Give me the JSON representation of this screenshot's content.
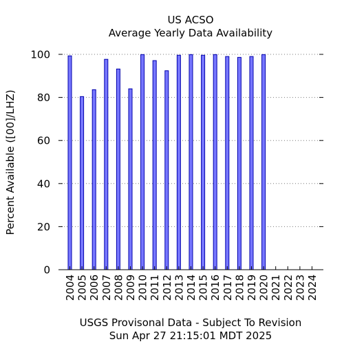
{
  "chart_data": {
    "type": "bar",
    "title": "US ACSO",
    "subtitle": "Average Yearly Data Availability",
    "ylabel": "Percent Available ([00]/LHZ)",
    "xlabel": "USGS Provisonal Data - Subject To Revision",
    "timestamp": "Sun Apr 27 21:15:01 MDT 2025",
    "categories": [
      "2004",
      "2005",
      "2006",
      "2007",
      "2008",
      "2009",
      "2010",
      "2011",
      "2012",
      "2013",
      "2014",
      "2015",
      "2016",
      "2017",
      "2018",
      "2019",
      "2020",
      "2021",
      "2022",
      "2023",
      "2024"
    ],
    "values": [
      99.3,
      80.4,
      83.6,
      97.7,
      93.2,
      84.0,
      99.9,
      97.1,
      92.4,
      99.6,
      99.9,
      99.6,
      99.9,
      99.0,
      98.6,
      99.0,
      99.9,
      null,
      null,
      null,
      null
    ],
    "ylim": [
      0,
      100
    ],
    "yticks": [
      0,
      20,
      40,
      60,
      80,
      100
    ],
    "grid": true,
    "bar_color": "#7777ff",
    "bar_edge_color": "#0000aa"
  }
}
